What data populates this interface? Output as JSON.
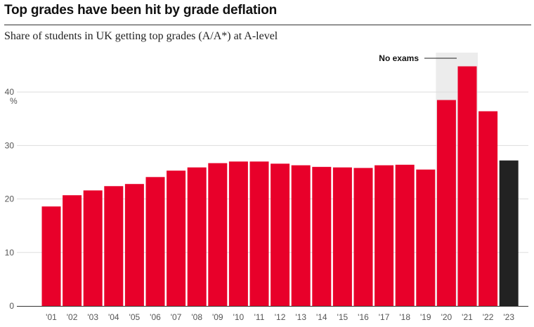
{
  "title": "Top grades have been hit by grade deflation",
  "subtitle": "Share of students in UK getting top grades (A/A*) at A-level",
  "colors": {
    "bar": "#e8002a",
    "highlight": "#222222",
    "shade": "#ececec",
    "grid": "#dddddd"
  },
  "chart_data": {
    "type": "bar",
    "categories": [
      "'01",
      "'02",
      "'03",
      "'04",
      "'05",
      "'06",
      "'07",
      "'08",
      "'09",
      "'10",
      "'11",
      "'12",
      "'13",
      "'14",
      "'15",
      "'16",
      "'17",
      "'18",
      "'19",
      "'20",
      "'21",
      "'22",
      "'23"
    ],
    "values": [
      18.6,
      20.7,
      21.6,
      22.4,
      22.8,
      24.1,
      25.3,
      25.9,
      26.7,
      27.0,
      27.0,
      26.6,
      26.3,
      26.0,
      25.9,
      25.8,
      26.3,
      26.4,
      25.5,
      38.5,
      44.8,
      36.4,
      27.2
    ],
    "highlight_category": "'23",
    "ylim": [
      0,
      45
    ],
    "yticks": [
      0,
      10,
      20,
      30,
      40
    ],
    "yunit": "%",
    "annotation": {
      "text": "No exams",
      "span": [
        "'20",
        "'21"
      ]
    },
    "grid": true
  }
}
